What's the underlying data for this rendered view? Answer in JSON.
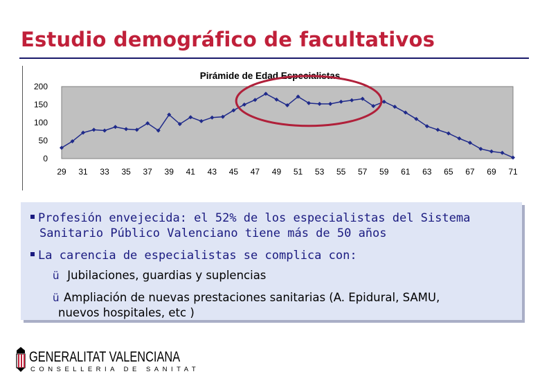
{
  "slide": {
    "title": "Estudio demográfico de facultativos"
  },
  "chart_data": {
    "type": "line",
    "title": "Pirámide de Edad Especialistas",
    "xlabel": "",
    "ylabel": "",
    "x": [
      29,
      30,
      31,
      32,
      33,
      34,
      35,
      36,
      37,
      38,
      39,
      40,
      41,
      42,
      43,
      44,
      45,
      46,
      47,
      48,
      49,
      50,
      51,
      52,
      53,
      54,
      55,
      56,
      57,
      58,
      59,
      60,
      61,
      62,
      63,
      64,
      65,
      66,
      67,
      68,
      69,
      70,
      71
    ],
    "y": [
      30,
      48,
      72,
      80,
      78,
      88,
      82,
      80,
      98,
      78,
      122,
      96,
      115,
      104,
      114,
      116,
      134,
      150,
      163,
      180,
      164,
      148,
      172,
      154,
      152,
      152,
      158,
      162,
      166,
      146,
      158,
      144,
      128,
      110,
      90,
      80,
      70,
      56,
      44,
      27,
      20,
      16,
      3
    ],
    "xticks": [
      29,
      31,
      33,
      35,
      37,
      39,
      41,
      43,
      45,
      47,
      49,
      51,
      53,
      55,
      57,
      59,
      61,
      63,
      65,
      67,
      69,
      71
    ],
    "yticks": [
      0,
      50,
      100,
      150,
      200
    ],
    "ylim": [
      0,
      200
    ],
    "grid": false,
    "line_color": "#1f2a8a",
    "highlight_color": "#b0203a",
    "highlight_range": [
      45.5,
      58.5
    ]
  },
  "box": {
    "bullets": [
      {
        "lines": [
          "Profesión envejecida: el 52% de los especialistas del Sistema",
          "Sanitario Público Valenciano tiene más de 50 años"
        ]
      },
      {
        "lines": [
          "La carencia de especialistas se complica con:"
        ]
      }
    ],
    "subitems": [
      {
        "check": "ü",
        "lines": [
          " Jubilaciones, guardias y suplencias"
        ]
      },
      {
        "check": "ü",
        "lines": [
          "Ampliación de nuevas prestaciones sanitarias (A. Epidural, SAMU,",
          "nuevos hospitales, etc )"
        ]
      }
    ]
  },
  "logo": {
    "line1": "GENERALITAT VALENCIANA",
    "line2": "CONSELLERIA DE SANITAT"
  }
}
